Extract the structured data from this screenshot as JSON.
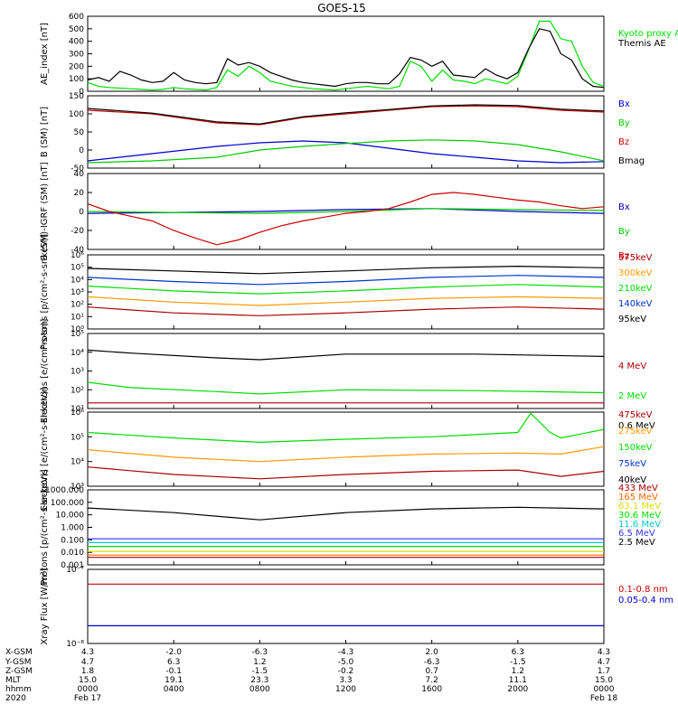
{
  "title": "GOES-15",
  "chart_data": [
    {
      "type": "line",
      "ylabel": "AE_index [nT]",
      "ylim": [
        0,
        600
      ],
      "yticks": [
        "600",
        "500",
        "400",
        "300",
        "200",
        "100",
        "0"
      ],
      "series": [
        {
          "name": "Kyoto proxy AE",
          "color": "#00e000",
          "x": [
            0,
            0.5,
            1,
            1.5,
            2,
            2.5,
            3,
            3.5,
            4,
            4.5,
            5,
            5.5,
            6,
            6.5,
            7,
            7.5,
            8,
            8.5,
            9,
            9.5,
            10,
            10.5,
            11,
            11.5,
            12,
            12.5,
            13,
            13.5,
            14,
            14.5,
            15,
            15.5,
            16,
            16.5,
            17,
            17.5,
            18,
            18.5,
            19,
            19.5,
            20,
            20.5,
            21,
            21.5,
            22,
            22.5,
            23,
            23.5,
            24
          ],
          "values": [
            70,
            40,
            30,
            25,
            20,
            15,
            10,
            15,
            30,
            20,
            15,
            10,
            30,
            170,
            120,
            200,
            150,
            80,
            60,
            40,
            30,
            20,
            15,
            10,
            20,
            30,
            40,
            30,
            20,
            40,
            240,
            200,
            80,
            170,
            90,
            80,
            60,
            100,
            80,
            60,
            120,
            330,
            560,
            560,
            420,
            400,
            200,
            70,
            40
          ]
        },
        {
          "name": "Themis AE",
          "color": "#000000",
          "x": [
            0,
            0.5,
            1,
            1.5,
            2,
            2.5,
            3,
            3.5,
            4,
            4.5,
            5,
            5.5,
            6,
            6.5,
            7,
            7.5,
            8,
            8.5,
            9,
            9.5,
            10,
            10.5,
            11,
            11.5,
            12,
            12.5,
            13,
            13.5,
            14,
            14.5,
            15,
            15.5,
            16,
            16.5,
            17,
            17.5,
            18,
            18.5,
            19,
            19.5,
            20,
            20.5,
            21,
            21.5,
            22,
            22.5,
            23,
            23.5,
            24
          ],
          "values": [
            90,
            110,
            80,
            160,
            130,
            90,
            70,
            80,
            150,
            90,
            70,
            60,
            70,
            260,
            210,
            230,
            200,
            150,
            120,
            90,
            70,
            60,
            50,
            40,
            60,
            70,
            70,
            60,
            60,
            140,
            270,
            250,
            200,
            240,
            130,
            120,
            110,
            180,
            130,
            100,
            150,
            340,
            500,
            480,
            300,
            250,
            100,
            40,
            30
          ]
        }
      ]
    },
    {
      "type": "line",
      "ylabel": "B (SM) [nT]",
      "ylim": [
        -50,
        150
      ],
      "yticks": [
        "150",
        "100",
        "50",
        "0",
        "-50"
      ],
      "series": [
        {
          "name": "Bx",
          "color": "#0000cc",
          "x": [
            0,
            3,
            6,
            8,
            10,
            12,
            14,
            16,
            18,
            20,
            22,
            24
          ],
          "values": [
            -30,
            -10,
            10,
            20,
            25,
            20,
            5,
            -10,
            -20,
            -30,
            -35,
            -32
          ]
        },
        {
          "name": "By",
          "color": "#00cc00",
          "x": [
            0,
            3,
            6,
            8,
            10,
            12,
            14,
            16,
            18,
            20,
            22,
            24
          ],
          "values": [
            -35,
            -30,
            -20,
            0,
            10,
            18,
            25,
            28,
            25,
            15,
            -5,
            -30
          ]
        },
        {
          "name": "Bz",
          "color": "#cc0000",
          "x": [
            0,
            3,
            6,
            8,
            10,
            12,
            14,
            16,
            18,
            20,
            22,
            24
          ],
          "values": [
            110,
            100,
            75,
            70,
            90,
            100,
            110,
            120,
            122,
            120,
            110,
            105
          ]
        },
        {
          "name": "Bmag",
          "color": "#000000",
          "x": [
            0,
            3,
            6,
            8,
            10,
            12,
            14,
            16,
            18,
            20,
            22,
            24
          ],
          "values": [
            115,
            102,
            78,
            72,
            92,
            103,
            112,
            122,
            125,
            123,
            113,
            108
          ]
        }
      ]
    },
    {
      "type": "line",
      "ylabel": "B (SM)-IGRF (SM) [nT]",
      "ylim": [
        -40,
        40
      ],
      "yticks": [
        "40",
        "20",
        "0",
        "-20",
        "-40"
      ],
      "series": [
        {
          "name": "Bx",
          "color": "#0000cc",
          "x": [
            0,
            4,
            8,
            12,
            16,
            20,
            24
          ],
          "values": [
            -2,
            -1,
            0,
            2,
            3,
            0,
            -2
          ]
        },
        {
          "name": "By",
          "color": "#00cc00",
          "x": [
            0,
            4,
            8,
            12,
            16,
            20,
            24
          ],
          "values": [
            0,
            -1,
            -2,
            0,
            3,
            2,
            1
          ]
        },
        {
          "name": "Bz",
          "color": "#cc0000",
          "x": [
            0,
            1,
            2,
            3,
            4,
            5,
            6,
            7,
            8,
            9,
            10,
            11,
            12,
            13,
            14,
            15,
            16,
            17,
            18,
            19,
            20,
            21,
            22,
            23,
            24
          ],
          "values": [
            8,
            0,
            -5,
            -10,
            -20,
            -28,
            -35,
            -30,
            -22,
            -15,
            -10,
            -6,
            -2,
            0,
            3,
            10,
            18,
            20,
            18,
            15,
            12,
            10,
            6,
            3,
            5
          ]
        }
      ]
    },
    {
      "type": "line",
      "ylabel": "Protons [p/(cm²-s-sr-keV)]",
      "yscale": "log",
      "ylim": [
        1,
        1000000
      ],
      "yticks": [
        "10⁶",
        "10⁵",
        "10⁴",
        "10³",
        "10²",
        "10¹",
        "10⁰"
      ],
      "series": [
        {
          "name": "575keV",
          "color": "#aa0000",
          "x": [
            0,
            4,
            8,
            12,
            16,
            20,
            24
          ],
          "values": [
            60,
            20,
            12,
            20,
            40,
            60,
            40
          ]
        },
        {
          "name": "300keV",
          "color": "#ff9900",
          "x": [
            0,
            4,
            8,
            12,
            16,
            20,
            24
          ],
          "values": [
            400,
            150,
            80,
            150,
            300,
            400,
            300
          ]
        },
        {
          "name": "210keV",
          "color": "#00dd00",
          "x": [
            0,
            4,
            8,
            12,
            16,
            20,
            24
          ],
          "values": [
            3000,
            1200,
            700,
            1200,
            2500,
            4000,
            2500
          ]
        },
        {
          "name": "140keV",
          "color": "#0033cc",
          "x": [
            0,
            4,
            8,
            12,
            16,
            20,
            24
          ],
          "values": [
            15000,
            7000,
            4000,
            7000,
            15000,
            22000,
            15000
          ]
        },
        {
          "name": "95keV",
          "color": "#000000",
          "x": [
            0,
            4,
            8,
            12,
            16,
            20,
            24
          ],
          "values": [
            80000,
            50000,
            30000,
            50000,
            90000,
            120000,
            90000
          ]
        }
      ]
    },
    {
      "type": "line",
      "ylabel": "Electrons [e/(cm²-s-sr)]",
      "yscale": "log",
      "ylim": [
        10,
        100000
      ],
      "yticks": [
        "10⁵",
        "10⁴",
        "10³",
        "10²",
        "10¹"
      ],
      "series": [
        {
          "name": "4 MeV",
          "color": "#aa0000",
          "x": [
            0,
            6,
            12,
            18,
            24
          ],
          "values": [
            20,
            20,
            20,
            20,
            20
          ]
        },
        {
          "name": "2 MeV",
          "color": "#00dd00",
          "x": [
            0,
            2,
            6,
            8,
            12,
            18,
            24
          ],
          "values": [
            250,
            130,
            80,
            60,
            100,
            90,
            70
          ]
        },
        {
          "name": "0.6 MeV",
          "color": "#000000",
          "x": [
            0,
            2,
            6,
            8,
            12,
            18,
            24
          ],
          "values": [
            13000,
            9000,
            5000,
            4000,
            8000,
            8000,
            6000
          ]
        }
      ]
    },
    {
      "type": "line",
      "ylabel": "Electrons [e/(cm²-s-sr-keV)]",
      "yscale": "log",
      "ylim": [
        1000,
        1000000
      ],
      "yticks": [
        "10⁶",
        "10⁵",
        "10⁴",
        "10³"
      ],
      "series": [
        {
          "name": "475keV",
          "color": "#aa0000",
          "x": [
            0,
            4,
            8,
            12,
            16,
            20,
            22,
            24
          ],
          "values": [
            6000,
            3000,
            2000,
            3000,
            4000,
            4500,
            2500,
            4000
          ]
        },
        {
          "name": "275keV",
          "color": "#ff9900",
          "x": [
            0,
            4,
            8,
            12,
            16,
            20,
            22,
            24
          ],
          "values": [
            30000,
            15000,
            10000,
            15000,
            20000,
            22000,
            20000,
            40000
          ]
        },
        {
          "name": "150keV",
          "color": "#00dd00",
          "x": [
            0,
            4,
            8,
            12,
            16,
            20,
            20.6,
            21.5,
            22,
            24
          ],
          "values": [
            150000,
            90000,
            60000,
            80000,
            100000,
            150000,
            900000,
            150000,
            90000,
            200000
          ]
        },
        {
          "name": "75keV",
          "color": "#0033cc",
          "x": [],
          "values": []
        },
        {
          "name": "40keV",
          "color": "#000000",
          "x": [],
          "values": []
        }
      ]
    },
    {
      "type": "line",
      "ylabel": "Protons [p/(cm²-s-sr-keV)]",
      "yscale": "log",
      "ylim": [
        0.001,
        1000
      ],
      "yticks": [
        "1000.000",
        "100.000",
        "10.000",
        "1.000",
        "0.100",
        "0.010",
        "0.001"
      ],
      "series": [
        {
          "name": "433 MeV",
          "color": "#aa0000",
          "x": [
            0,
            24
          ],
          "values": [
            0.004,
            0.004
          ]
        },
        {
          "name": "165 MeV",
          "color": "#ff6600",
          "x": [
            0,
            24
          ],
          "values": [
            0.006,
            0.006
          ]
        },
        {
          "name": "63.1 MeV",
          "color": "#dddd00",
          "x": [
            0,
            24
          ],
          "values": [
            0.012,
            0.012
          ]
        },
        {
          "name": "30.6 MeV",
          "color": "#00dd00",
          "x": [
            0,
            24
          ],
          "values": [
            0.03,
            0.03
          ]
        },
        {
          "name": "11.6 MeV",
          "color": "#00cccc",
          "x": [
            0,
            24
          ],
          "values": [
            0.06,
            0.06
          ]
        },
        {
          "name": "6.5 MeV",
          "color": "#3333ff",
          "x": [
            0,
            24
          ],
          "values": [
            0.12,
            0.12
          ]
        },
        {
          "name": "2.5 MeV",
          "color": "#000000",
          "x": [
            0,
            4,
            8,
            12,
            16,
            20,
            24
          ],
          "values": [
            35,
            15,
            4,
            15,
            30,
            40,
            30
          ]
        }
      ]
    },
    {
      "type": "line",
      "ylabel": "Xray Flux [W/m²]",
      "yscale": "log",
      "ylim": [
        1e-09,
        1e-07
      ],
      "yticks": [
        "10⁻⁷",
        "10⁻⁸"
      ],
      "series": [
        {
          "name": "0.1-0.8 nm",
          "color": "#cc0000",
          "x": [
            0,
            24
          ],
          "values": [
            4e-08,
            4e-08
          ]
        },
        {
          "name": "0.05-0.4 nm",
          "color": "#0000cc",
          "x": [
            0,
            24
          ],
          "values": [
            3e-09,
            3e-09
          ]
        }
      ]
    }
  ],
  "x_axis": {
    "row_labels": [
      "X-GSM",
      "Y-GSM",
      "Z-GSM",
      "MLT",
      "hhmm",
      "2020"
    ],
    "columns": [
      [
        "4.3",
        "4.7",
        "1.8",
        "15.0",
        "0000",
        "Feb 17"
      ],
      [
        "-2.0",
        "6.3",
        "-0.1",
        "19.1",
        "0400",
        ""
      ],
      [
        "-6.3",
        "1.2",
        "-1.5",
        "23.3",
        "0800",
        ""
      ],
      [
        "-4.3",
        "-5.0",
        "-0.2",
        "3.3",
        "1200",
        ""
      ],
      [
        "2.0",
        "-6.3",
        "0.7",
        "7.2",
        "1600",
        ""
      ],
      [
        "6.3",
        "-1.5",
        "1.2",
        "11.1",
        "2000",
        ""
      ],
      [
        "4.3",
        "4.7",
        "1.7",
        "15.0",
        "0000",
        "Feb 18"
      ]
    ]
  }
}
